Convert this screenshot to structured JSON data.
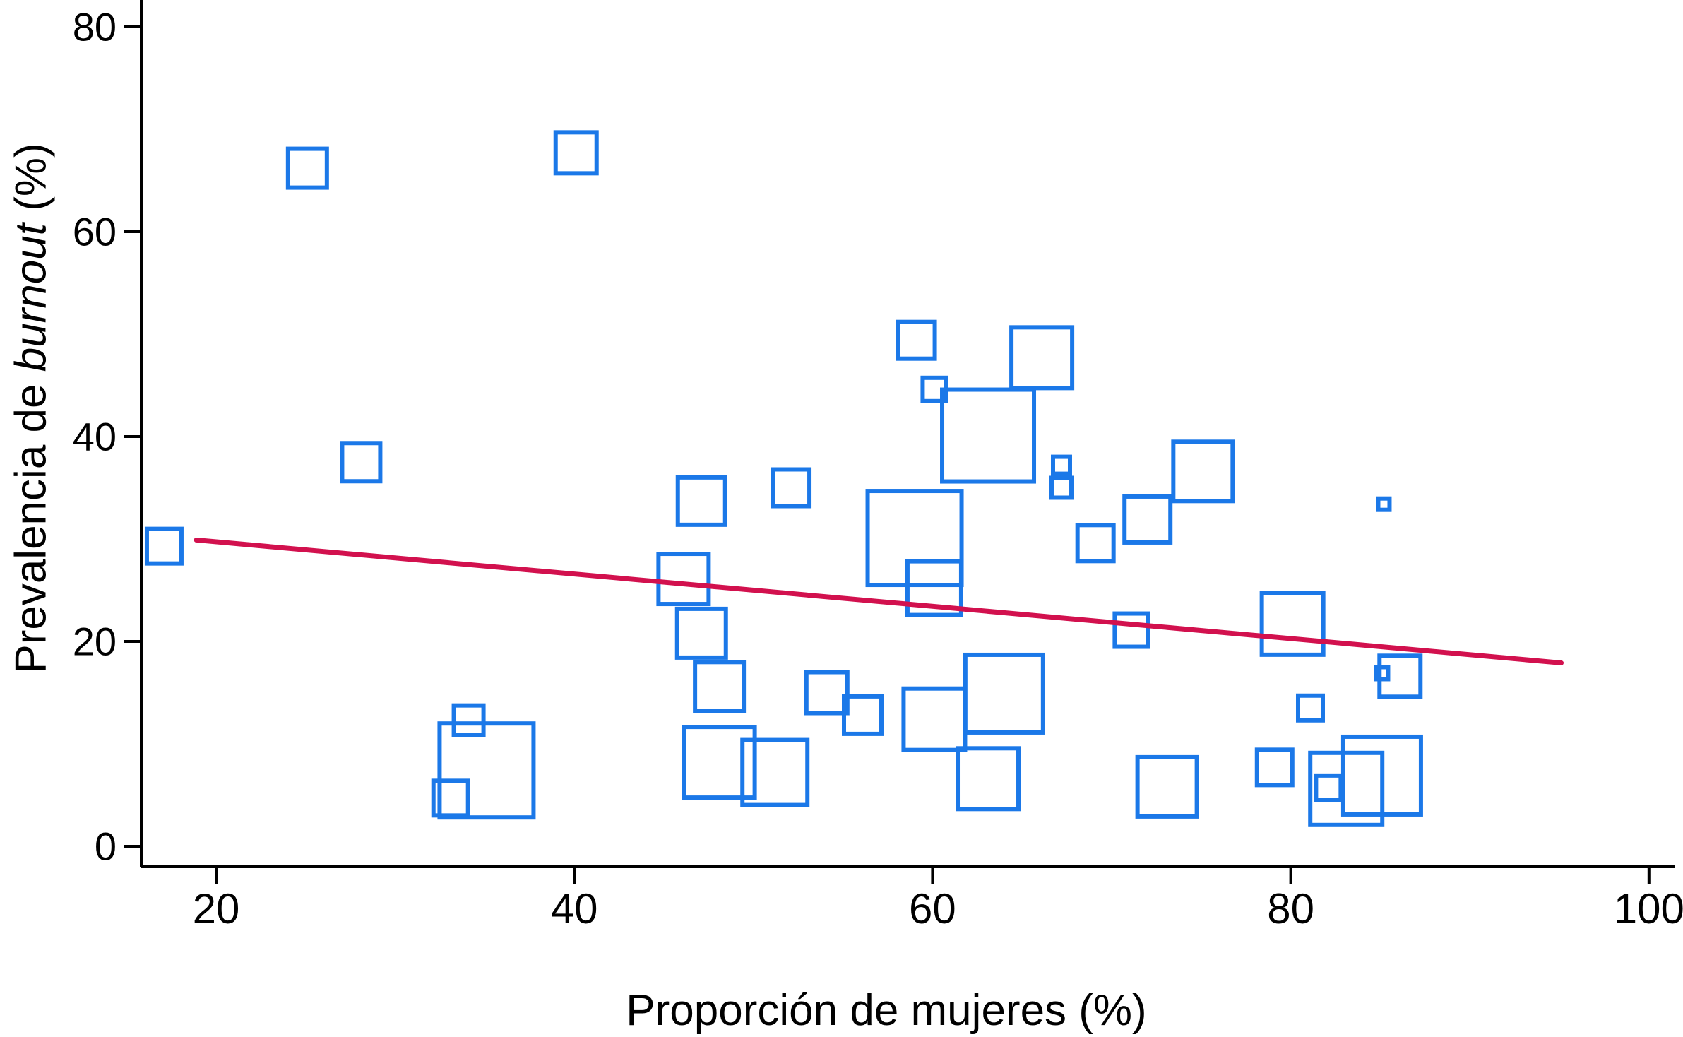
{
  "figure": {
    "background_color": "#ffffff",
    "axis_color": "#000000",
    "marker_color": "#1B78E8",
    "trend_color": "#D2114E"
  },
  "chart_data": {
    "type": "scatter",
    "subtype": "bubble-weighted-meta-regression",
    "title": "",
    "xlabel": "Proporción de mujeres (%)",
    "ylabel_parts": {
      "p1": "Prevalencia de ",
      "p2": "burnout",
      "p3": " (%)"
    },
    "marker_shape": "open-square",
    "marker_color": "#1B78E8",
    "grid": false,
    "legend": "none",
    "x_ticks": [
      20,
      40,
      60,
      80,
      100
    ],
    "y_ticks": [
      0,
      20,
      40,
      60,
      80
    ],
    "xlim": [
      15.8,
      101.5
    ],
    "ylim": [
      -2,
      82.5
    ],
    "trend_line": {
      "x1": 18.9,
      "y1": 29.9,
      "x2": 95.1,
      "y2": 17.9,
      "color": "#D2114E"
    },
    "points": [
      {
        "x": 25.1,
        "y": 66.2,
        "s": 55
      },
      {
        "x": 40.1,
        "y": 67.7,
        "s": 58
      },
      {
        "x": 28.1,
        "y": 37.5,
        "s": 54
      },
      {
        "x": 17.1,
        "y": 29.3,
        "s": 49
      },
      {
        "x": 59.1,
        "y": 49.4,
        "s": 52
      },
      {
        "x": 66.1,
        "y": 47.7,
        "s": 86
      },
      {
        "x": 60.1,
        "y": 44.6,
        "s": 33
      },
      {
        "x": 63.1,
        "y": 40.1,
        "s": 130
      },
      {
        "x": 67.2,
        "y": 37.2,
        "s": 24
      },
      {
        "x": 67.2,
        "y": 35.0,
        "s": 28
      },
      {
        "x": 75.1,
        "y": 36.6,
        "s": 84
      },
      {
        "x": 72.0,
        "y": 31.9,
        "s": 65
      },
      {
        "x": 69.1,
        "y": 29.6,
        "s": 51
      },
      {
        "x": 59.0,
        "y": 30.1,
        "s": 133
      },
      {
        "x": 60.1,
        "y": 25.2,
        "s": 76
      },
      {
        "x": 47.1,
        "y": 33.7,
        "s": 67
      },
      {
        "x": 52.1,
        "y": 35.0,
        "s": 52
      },
      {
        "x": 46.1,
        "y": 26.1,
        "s": 71
      },
      {
        "x": 47.1,
        "y": 20.8,
        "s": 69
      },
      {
        "x": 48.1,
        "y": 15.6,
        "s": 69
      },
      {
        "x": 34.1,
        "y": 12.3,
        "s": 42
      },
      {
        "x": 35.1,
        "y": 7.4,
        "s": 133
      },
      {
        "x": 33.1,
        "y": 4.7,
        "s": 49
      },
      {
        "x": 48.1,
        "y": 8.2,
        "s": 100
      },
      {
        "x": 54.1,
        "y": 15.0,
        "s": 58
      },
      {
        "x": 56.1,
        "y": 12.8,
        "s": 53
      },
      {
        "x": 51.2,
        "y": 7.2,
        "s": 92
      },
      {
        "x": 60.1,
        "y": 12.4,
        "s": 87
      },
      {
        "x": 64.0,
        "y": 14.9,
        "s": 110
      },
      {
        "x": 63.1,
        "y": 6.6,
        "s": 86
      },
      {
        "x": 71.1,
        "y": 21.1,
        "s": 47
      },
      {
        "x": 80.1,
        "y": 21.7,
        "s": 87
      },
      {
        "x": 86.1,
        "y": 16.6,
        "s": 58
      },
      {
        "x": 85.1,
        "y": 16.9,
        "s": 17
      },
      {
        "x": 81.1,
        "y": 13.5,
        "s": 35
      },
      {
        "x": 73.1,
        "y": 5.8,
        "s": 84
      },
      {
        "x": 79.1,
        "y": 7.7,
        "s": 50
      },
      {
        "x": 85.1,
        "y": 6.9,
        "s": 110
      },
      {
        "x": 83.1,
        "y": 5.6,
        "s": 102
      },
      {
        "x": 82.1,
        "y": 5.7,
        "s": 35
      },
      {
        "x": 85.2,
        "y": 33.4,
        "s": 16
      }
    ]
  }
}
